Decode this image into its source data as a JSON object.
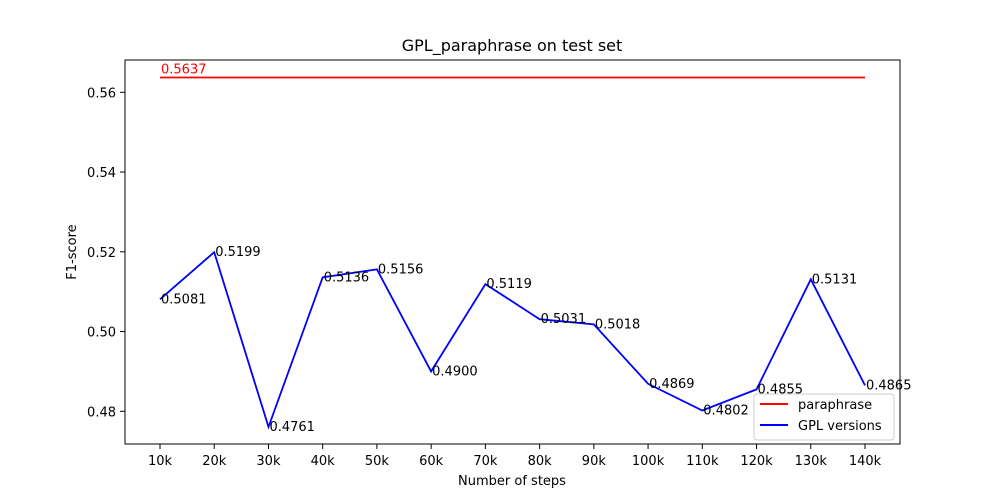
{
  "chart_data": {
    "type": "line",
    "title": "GPL_paraphrase on test set",
    "xlabel": "Number of steps",
    "ylabel": "F1-score",
    "categories": [
      "10k",
      "20k",
      "30k",
      "40k",
      "50k",
      "60k",
      "70k",
      "80k",
      "90k",
      "100k",
      "110k",
      "120k",
      "130k",
      "140k"
    ],
    "yticks": [
      "0.48",
      "0.50",
      "0.52",
      "0.54",
      "0.56"
    ],
    "ylim": [
      0.4718,
      0.5681
    ],
    "grid": false,
    "legend_position": "lower-right",
    "series": [
      {
        "name": "paraphrase",
        "color": "#ff0000",
        "values": [
          0.5637,
          0.5637,
          0.5637,
          0.5637,
          0.5637,
          0.5637,
          0.5637,
          0.5637,
          0.5637,
          0.5637,
          0.5637,
          0.5637,
          0.5637,
          0.5637
        ],
        "point_labels": [
          "0.5637"
        ],
        "label_indices": [
          0
        ]
      },
      {
        "name": "GPL versions",
        "color": "#0000ff",
        "values": [
          0.5081,
          0.5199,
          0.4761,
          0.5136,
          0.5156,
          0.49,
          0.5119,
          0.5031,
          0.5018,
          0.4869,
          0.4802,
          0.4855,
          0.5131,
          0.4865
        ],
        "point_labels": [
          "0.5081",
          "0.5199",
          "0.4761",
          "0.5136",
          "0.5156",
          "0.4900",
          "0.5119",
          "0.5031",
          "0.5018",
          "0.4869",
          "0.4802",
          "0.4855",
          "0.5131",
          "0.4865"
        ],
        "label_indices": [
          0,
          1,
          2,
          3,
          4,
          5,
          6,
          7,
          8,
          9,
          10,
          11,
          12,
          13
        ]
      }
    ]
  }
}
